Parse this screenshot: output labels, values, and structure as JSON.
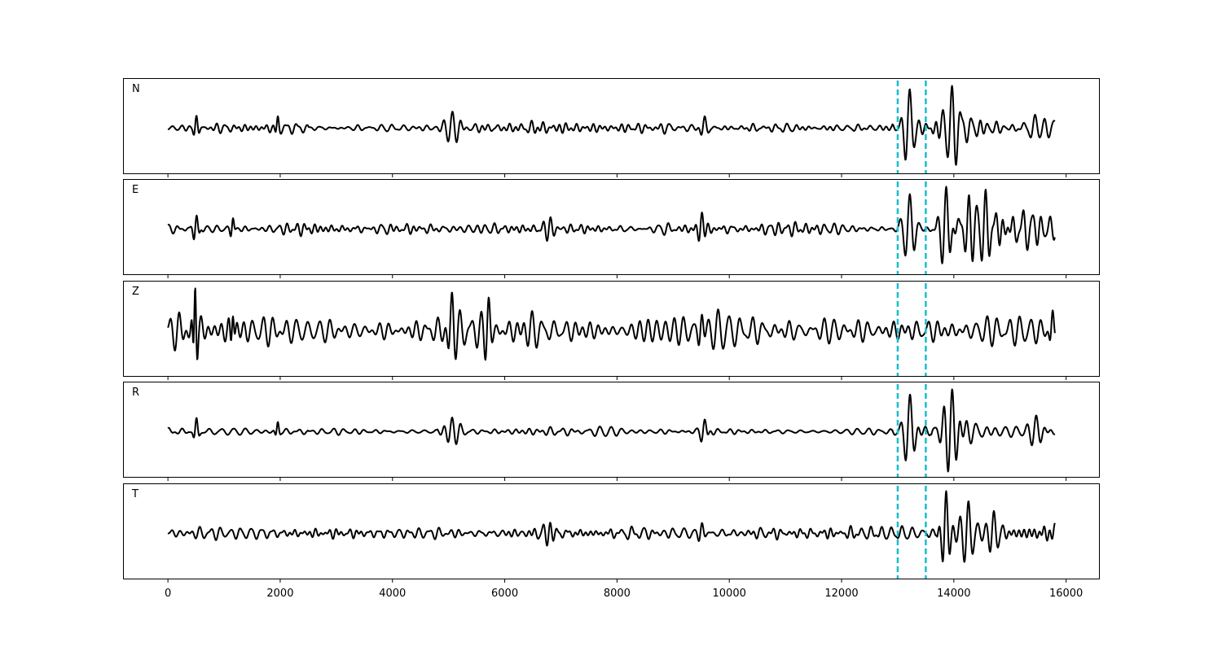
{
  "chart_data": {
    "type": "line",
    "title": "",
    "xlabel": "",
    "ylabel": "",
    "xlim": [
      -800,
      16600
    ],
    "xticks": [
      0,
      2000,
      4000,
      6000,
      8000,
      10000,
      12000,
      14000,
      16000
    ],
    "xtick_labels": [
      "0",
      "2000",
      "4000",
      "6000",
      "8000",
      "10000",
      "12000",
      "14000",
      "16000"
    ],
    "grid": false,
    "y_ticks_shown": false,
    "sample_count": 15800,
    "markers": {
      "style": "dashed",
      "color": "#17becf",
      "x": [
        13000,
        13500
      ]
    },
    "trace_color": "#000000",
    "panels": [
      {
        "label": "N",
        "events": [
          {
            "x": 500,
            "amp": 0.3,
            "width": 80,
            "period": 110
          },
          {
            "x": 1950,
            "amp": 0.25,
            "width": 60,
            "period": 110
          },
          {
            "x": 5050,
            "amp": 0.35,
            "width": 250,
            "period": 150
          },
          {
            "x": 9550,
            "amp": 0.3,
            "width": 120,
            "period": 140
          },
          {
            "x": 13200,
            "amp": 0.95,
            "width": 180,
            "period": 170
          },
          {
            "x": 13950,
            "amp": 1.0,
            "width": 260,
            "period": 150
          },
          {
            "x": 15450,
            "amp": 0.4,
            "width": 220,
            "period": 170
          }
        ],
        "noise": [
          {
            "from": 0,
            "to": 2500,
            "amp": 0.13
          },
          {
            "from": 2500,
            "to": 4800,
            "amp": 0.07
          },
          {
            "from": 4800,
            "to": 6200,
            "amp": 0.12
          },
          {
            "from": 6200,
            "to": 9000,
            "amp": 0.16
          },
          {
            "from": 9000,
            "to": 12900,
            "amp": 0.09
          },
          {
            "from": 12900,
            "to": 13600,
            "amp": 0.15
          },
          {
            "from": 13600,
            "to": 15800,
            "amp": 0.33
          }
        ]
      },
      {
        "label": "E",
        "events": [
          {
            "x": 500,
            "amp": 0.35,
            "width": 100,
            "period": 110
          },
          {
            "x": 1150,
            "amp": 0.3,
            "width": 60,
            "period": 110
          },
          {
            "x": 6800,
            "amp": 0.3,
            "width": 200,
            "period": 130
          },
          {
            "x": 9500,
            "amp": 0.45,
            "width": 110,
            "period": 140
          },
          {
            "x": 13200,
            "amp": 0.8,
            "width": 200,
            "period": 170
          },
          {
            "x": 13850,
            "amp": 0.9,
            "width": 200,
            "period": 150
          },
          {
            "x": 14400,
            "amp": 0.6,
            "width": 300,
            "period": 150
          }
        ],
        "noise": [
          {
            "from": 0,
            "to": 13000,
            "amp": 0.15
          },
          {
            "from": 13000,
            "to": 13700,
            "amp": 0.18
          },
          {
            "from": 13700,
            "to": 15800,
            "amp": 0.45
          }
        ]
      },
      {
        "label": "Z",
        "events": [
          {
            "x": 480,
            "amp": 1.0,
            "width": 60,
            "period": 90
          },
          {
            "x": 1150,
            "amp": 0.55,
            "width": 60,
            "period": 110
          },
          {
            "x": 5050,
            "amp": 0.65,
            "width": 120,
            "period": 150
          },
          {
            "x": 5700,
            "amp": 0.55,
            "width": 100,
            "period": 140
          },
          {
            "x": 9500,
            "amp": 0.4,
            "width": 100,
            "period": 140
          },
          {
            "x": 15750,
            "amp": 0.35,
            "width": 80,
            "period": 120
          }
        ],
        "noise": [
          {
            "from": 0,
            "to": 15800,
            "amp": 0.3
          }
        ]
      },
      {
        "label": "R",
        "events": [
          {
            "x": 500,
            "amp": 0.25,
            "width": 80,
            "period": 110
          },
          {
            "x": 1950,
            "amp": 0.22,
            "width": 60,
            "period": 110
          },
          {
            "x": 5050,
            "amp": 0.3,
            "width": 250,
            "period": 150
          },
          {
            "x": 9550,
            "amp": 0.28,
            "width": 120,
            "period": 140
          },
          {
            "x": 13200,
            "amp": 0.85,
            "width": 180,
            "period": 170
          },
          {
            "x": 13950,
            "amp": 0.9,
            "width": 260,
            "period": 150
          },
          {
            "x": 15450,
            "amp": 0.35,
            "width": 220,
            "period": 170
          }
        ],
        "noise": [
          {
            "from": 0,
            "to": 2500,
            "amp": 0.12
          },
          {
            "from": 2500,
            "to": 4800,
            "amp": 0.06
          },
          {
            "from": 4800,
            "to": 6200,
            "amp": 0.11
          },
          {
            "from": 6200,
            "to": 9000,
            "amp": 0.14
          },
          {
            "from": 9000,
            "to": 12900,
            "amp": 0.08
          },
          {
            "from": 12900,
            "to": 13600,
            "amp": 0.14
          },
          {
            "from": 13600,
            "to": 15800,
            "amp": 0.3
          }
        ]
      },
      {
        "label": "T",
        "events": [
          {
            "x": 6800,
            "amp": 0.35,
            "width": 200,
            "period": 130
          },
          {
            "x": 9500,
            "amp": 0.3,
            "width": 100,
            "period": 140
          },
          {
            "x": 13850,
            "amp": 1.0,
            "width": 120,
            "period": 140
          },
          {
            "x": 14250,
            "amp": 0.8,
            "width": 220,
            "period": 150
          },
          {
            "x": 14700,
            "amp": 0.6,
            "width": 250,
            "period": 160
          }
        ],
        "noise": [
          {
            "from": 0,
            "to": 13000,
            "amp": 0.16
          },
          {
            "from": 13000,
            "to": 13700,
            "amp": 0.18
          },
          {
            "from": 13700,
            "to": 15800,
            "amp": 0.4
          }
        ]
      }
    ]
  }
}
